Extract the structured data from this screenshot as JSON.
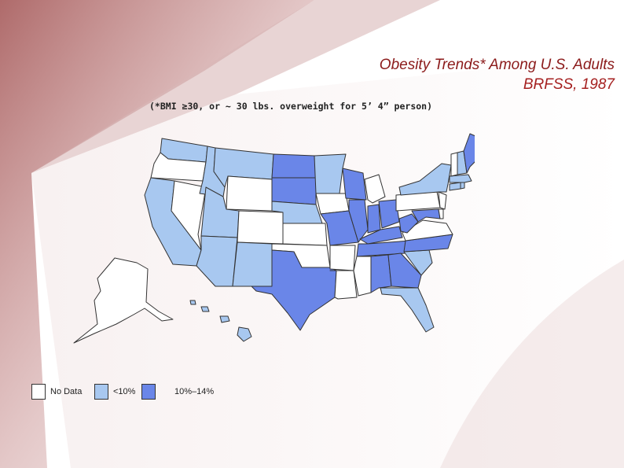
{
  "title": "Obesity Trends* Among U.S. Adults",
  "subtitle": "BRFSS, 1987",
  "footnote": "(*BMI ≥30, or ~ 30 lbs. overweight for 5’ 4” person)",
  "colors": {
    "no_data": "#ffffff",
    "low": "#a8c8f0",
    "mid": "#6a86e8",
    "accent": "#8b1a1a",
    "background_wash": "#b46a6a"
  },
  "legend": [
    {
      "label": "No Data",
      "color": "#ffffff"
    },
    {
      "label": "<10%",
      "color": "#a8c8f0"
    },
    {
      "label": "10%–14%",
      "color": "#6a86e8"
    }
  ],
  "states": {
    "WA": "low",
    "OR": "no_data",
    "CA": "low",
    "NV": "no_data",
    "ID": "low",
    "MT": "low",
    "WY": "no_data",
    "UT": "low",
    "AZ": "low",
    "CO": "no_data",
    "NM": "low",
    "ND": "mid",
    "SD": "mid",
    "NE": "low",
    "KS": "no_data",
    "OK": "no_data",
    "TX": "mid",
    "MN": "low",
    "IA": "no_data",
    "MO": "mid",
    "AR": "no_data",
    "LA": "no_data",
    "WI": "mid",
    "IL": "mid",
    "MI": "no_data",
    "IN": "mid",
    "OH": "mid",
    "KY": "mid",
    "TN": "mid",
    "MS": "no_data",
    "AL": "mid",
    "GA": "mid",
    "FL": "low",
    "SC": "low",
    "NC": "mid",
    "VA": "no_data",
    "WV": "mid",
    "MD": "mid",
    "DE": "no_data",
    "PA": "no_data",
    "NY": "low",
    "NJ": "no_data",
    "CT": "low",
    "RI": "low",
    "MA": "low",
    "VT": "no_data",
    "NH": "low",
    "ME": "mid",
    "AK": "no_data",
    "HI": "low"
  }
}
